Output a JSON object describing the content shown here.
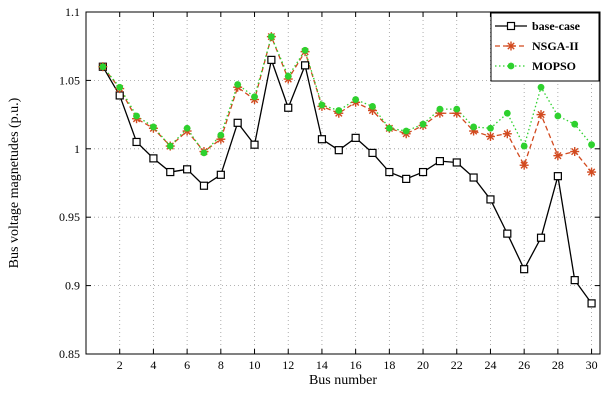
{
  "chart_data": {
    "type": "line",
    "title": "",
    "xlabel": "Bus number",
    "ylabel": "Bus voltage magnetudes (p.u.)",
    "xlim": [
      0,
      30.5
    ],
    "ylim": [
      0.85,
      1.1
    ],
    "xticks": [
      2,
      4,
      6,
      8,
      10,
      12,
      14,
      16,
      18,
      20,
      22,
      24,
      26,
      28,
      30
    ],
    "xtick_labels": [
      "2",
      "4",
      "6",
      "8",
      "10",
      "12",
      "14",
      "16",
      "18",
      "20",
      "22",
      "24",
      "26",
      "28",
      "30"
    ],
    "yticks": [
      0.85,
      0.9,
      0.95,
      1.0,
      1.05,
      1.1
    ],
    "ytick_labels": [
      "0.85",
      "0.9",
      "0.95",
      "1",
      "1.05",
      "1.1"
    ],
    "grid": true,
    "legend_position": "top-right",
    "x": [
      1,
      2,
      3,
      4,
      5,
      6,
      7,
      8,
      9,
      10,
      11,
      12,
      13,
      14,
      15,
      16,
      17,
      18,
      19,
      20,
      21,
      22,
      23,
      24,
      25,
      26,
      27,
      28,
      29,
      30
    ],
    "series": [
      {
        "name": "base-case",
        "color": "#000000",
        "marker": "square",
        "dash": "solid",
        "values": [
          1.06,
          1.039,
          1.005,
          0.993,
          0.983,
          0.985,
          0.973,
          0.981,
          1.019,
          1.003,
          1.065,
          1.03,
          1.061,
          1.007,
          0.999,
          1.008,
          0.997,
          0.983,
          0.978,
          0.983,
          0.991,
          0.99,
          0.979,
          0.963,
          0.938,
          0.912,
          0.935,
          0.98,
          0.904,
          0.887
        ]
      },
      {
        "name": "NSGA-II",
        "color": "#d24a1f",
        "marker": "asterisk",
        "dash": "dashed",
        "values": [
          1.06,
          1.044,
          1.022,
          1.015,
          1.002,
          1.013,
          0.998,
          1.007,
          1.045,
          1.036,
          1.082,
          1.051,
          1.071,
          1.031,
          1.026,
          1.034,
          1.028,
          1.015,
          1.011,
          1.017,
          1.026,
          1.026,
          1.013,
          1.009,
          1.011,
          0.988,
          1.025,
          0.995,
          0.998,
          0.983
        ]
      },
      {
        "name": "MOPSO",
        "color": "#2ed12e",
        "marker": "dot",
        "dash": "dotted",
        "values": [
          1.06,
          1.045,
          1.024,
          1.016,
          1.002,
          1.015,
          0.997,
          1.01,
          1.047,
          1.038,
          1.082,
          1.053,
          1.072,
          1.032,
          1.028,
          1.036,
          1.031,
          1.015,
          1.013,
          1.018,
          1.029,
          1.029,
          1.016,
          1.015,
          1.026,
          1.002,
          1.045,
          1.024,
          1.018,
          1.003
        ]
      }
    ]
  }
}
